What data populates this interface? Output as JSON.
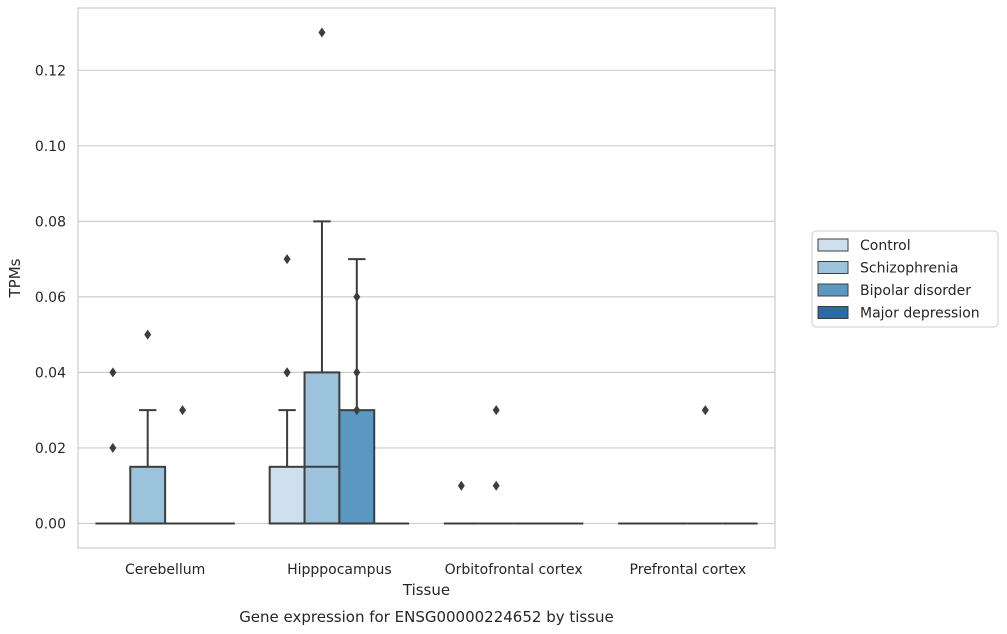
{
  "chart_data": {
    "type": "box",
    "caption": "Gene expression for ENSG00000224652 by tissue",
    "xlabel": "Tissue",
    "ylabel": "TPMs",
    "ylim": [
      -0.0065,
      0.1365
    ],
    "yticks": [
      0.0,
      0.02,
      0.04,
      0.06,
      0.08,
      0.1,
      0.12
    ],
    "ytick_labels": [
      "0.00",
      "0.02",
      "0.04",
      "0.06",
      "0.08",
      "0.10",
      "0.12"
    ],
    "grid": "horizontal",
    "legend_position": "right",
    "categories": [
      "Cerebellum",
      "Hipppocampus",
      "Orbitofrontal cortex",
      "Prefrontal cortex"
    ],
    "series": [
      {
        "name": "Control",
        "color": "#cfdfee",
        "boxes": [
          {
            "q1": 0,
            "median": 0,
            "q3": 0,
            "whisker_low": 0,
            "whisker_high": 0,
            "outliers": [
              0.02,
              0.04
            ]
          },
          {
            "q1": 0,
            "median": 0,
            "q3": 0.015,
            "whisker_low": 0,
            "whisker_high": 0.03,
            "outliers": [
              0.04,
              0.04,
              0.07
            ]
          },
          {
            "q1": 0,
            "median": 0,
            "q3": 0,
            "whisker_low": 0,
            "whisker_high": 0,
            "outliers": [
              0.01
            ]
          },
          {
            "q1": 0,
            "median": 0,
            "q3": 0,
            "whisker_low": 0,
            "whisker_high": 0,
            "outliers": []
          }
        ]
      },
      {
        "name": "Schizophrenia",
        "color": "#9bc3dc",
        "boxes": [
          {
            "q1": 0,
            "median": 0,
            "q3": 0.015,
            "whisker_low": 0,
            "whisker_high": 0.03,
            "outliers": [
              0.05
            ]
          },
          {
            "q1": 0,
            "median": 0.015,
            "q3": 0.04,
            "whisker_low": 0,
            "whisker_high": 0.08,
            "outliers": [
              0.13
            ]
          },
          {
            "q1": 0,
            "median": 0,
            "q3": 0,
            "whisker_low": 0,
            "whisker_high": 0,
            "outliers": [
              0.01,
              0.03
            ]
          },
          {
            "q1": 0,
            "median": 0,
            "q3": 0,
            "whisker_low": 0,
            "whisker_high": 0,
            "outliers": []
          }
        ]
      },
      {
        "name": "Bipolar disorder",
        "color": "#5a98c2",
        "boxes": [
          {
            "q1": 0,
            "median": 0,
            "q3": 0,
            "whisker_low": 0,
            "whisker_high": 0,
            "outliers": [
              0.03
            ]
          },
          {
            "q1": 0,
            "median": 0,
            "q3": 0.03,
            "whisker_low": 0,
            "whisker_high": 0.07,
            "outliers": [
              0.03,
              0.04,
              0.06
            ]
          },
          {
            "q1": 0,
            "median": 0,
            "q3": 0,
            "whisker_low": 0,
            "whisker_high": 0,
            "outliers": []
          },
          {
            "q1": 0,
            "median": 0,
            "q3": 0,
            "whisker_low": 0,
            "whisker_high": 0,
            "outliers": [
              0.03
            ]
          }
        ]
      },
      {
        "name": "Major depression",
        "color": "#2b6aa3",
        "boxes": [
          {
            "q1": 0,
            "median": 0,
            "q3": 0,
            "whisker_low": 0,
            "whisker_high": 0,
            "outliers": []
          },
          {
            "q1": 0,
            "median": 0,
            "q3": 0,
            "whisker_low": 0,
            "whisker_high": 0,
            "outliers": []
          },
          {
            "q1": 0,
            "median": 0,
            "q3": 0,
            "whisker_low": 0,
            "whisker_high": 0,
            "outliers": []
          },
          {
            "q1": 0,
            "median": 0,
            "q3": 0,
            "whisker_low": 0,
            "whisker_high": 0,
            "outliers": []
          }
        ]
      }
    ]
  }
}
